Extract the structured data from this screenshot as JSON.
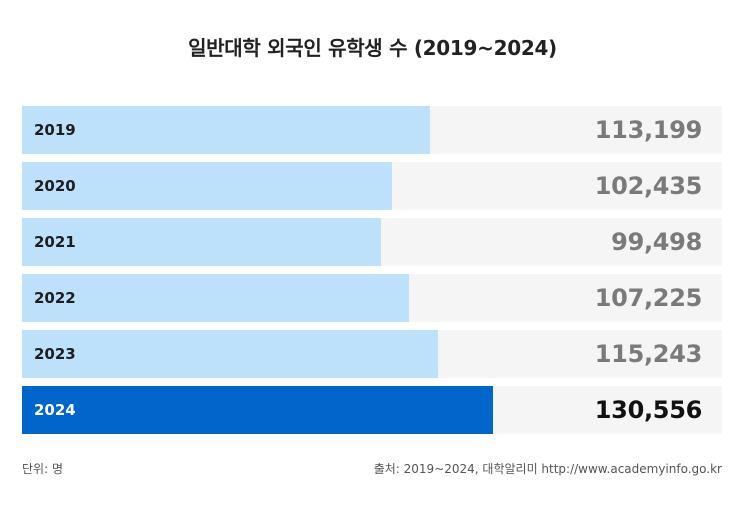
{
  "chart_data": {
    "type": "bar",
    "orientation": "horizontal",
    "title": "일반대학 외국인 유학생 수 (2019~2024)",
    "categories": [
      "2019",
      "2020",
      "2021",
      "2022",
      "2023",
      "2024"
    ],
    "values": [
      113199,
      102435,
      99498,
      107225,
      115243,
      130556
    ],
    "value_labels": [
      "113,199",
      "102,435",
      "99,498",
      "107,225",
      "115,243",
      "130,556"
    ],
    "highlight_index": 5,
    "xlim": [
      0,
      194000
    ],
    "grid": false,
    "legend": "none",
    "colors": {
      "bar": "#bde0fb",
      "highlight": "#0066cc",
      "track": "#f5f5f5"
    }
  },
  "footer": {
    "unit": "단위: 명",
    "source": "출처: 2019~2024, 대학알리미  http://www.academyinfo.go.kr"
  }
}
